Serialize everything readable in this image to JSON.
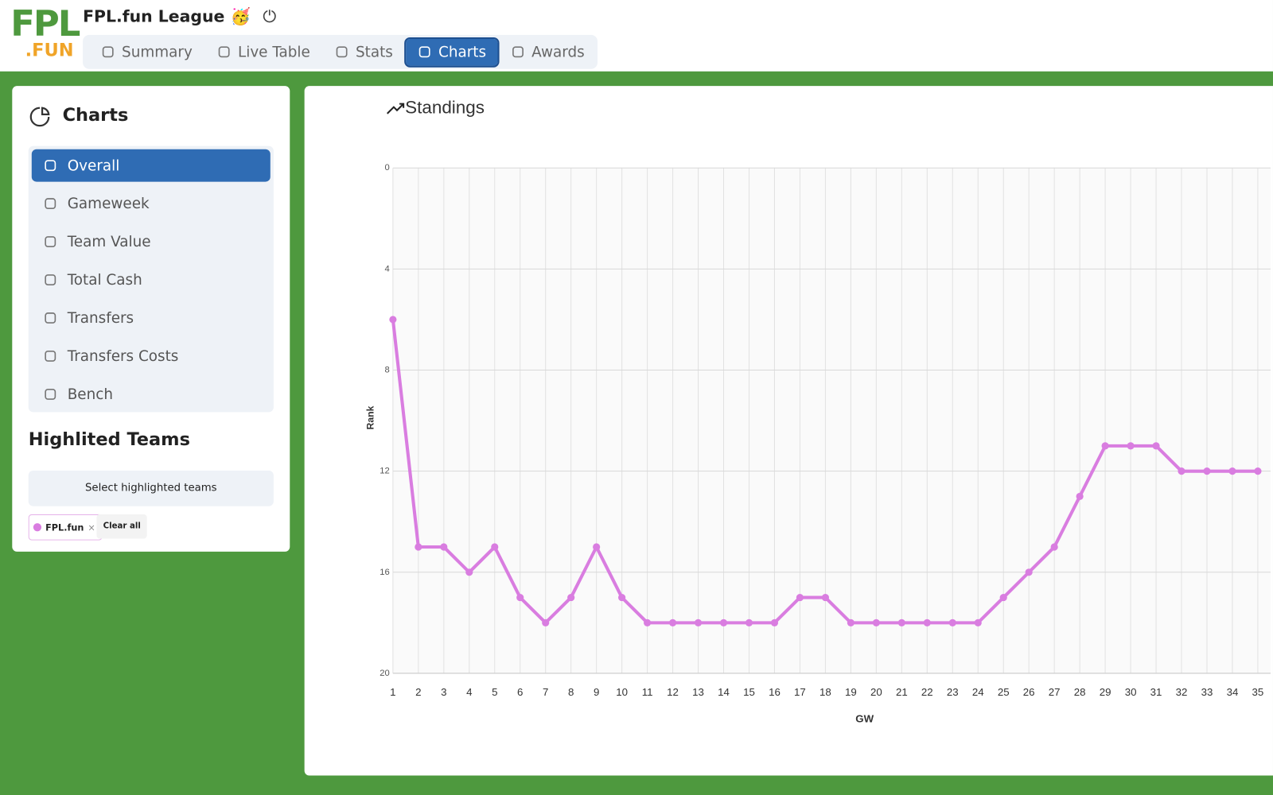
{
  "header": {
    "logo_top": "FPL",
    "logo_bottom": ".FUN",
    "league": "FPL.fun League",
    "emoji": "🥳",
    "tabs": [
      "Summary",
      "Live Table",
      "Stats",
      "Charts",
      "Awards"
    ],
    "active_tab": "Charts"
  },
  "sidebar": {
    "title": "Charts",
    "menu": [
      "Overall",
      "Gameweek",
      "Team Value",
      "Total Cash",
      "Transfers",
      "Transfers Costs",
      "Bench"
    ],
    "active_menu": "Overall",
    "highlight_title": "Highlited Teams",
    "select_button": "Select highlighted teams",
    "clear_button": "Clear all"
  },
  "chart_data": {
    "type": "line",
    "title": "Standings",
    "x_label": "GW",
    "y_label": "Rank",
    "x": [
      1,
      2,
      3,
      4,
      5,
      6,
      7,
      8,
      9,
      10,
      11,
      12,
      13,
      14,
      15,
      16,
      17,
      18,
      19,
      20,
      21,
      22,
      23,
      24,
      25,
      26,
      27,
      28,
      29,
      30,
      31,
      32,
      33,
      34,
      35
    ],
    "series": [
      {
        "name": "FPL.fun",
        "color": "#d97de0",
        "values": [
          6,
          15,
          15,
          16,
          15,
          17,
          18,
          17,
          15,
          17,
          18,
          18,
          18,
          18,
          18,
          18,
          17,
          17,
          18,
          18,
          18,
          18,
          18,
          18,
          17,
          16,
          15,
          13,
          11,
          11,
          11,
          12,
          12,
          12,
          12
        ]
      }
    ],
    "xlim": [
      1,
      35.5
    ],
    "xticks": [
      1,
      2,
      3,
      4,
      5,
      6,
      7,
      8,
      9,
      10,
      11,
      12,
      13,
      14,
      15,
      16,
      17,
      18,
      19,
      20,
      21,
      22,
      23,
      24,
      25,
      26,
      27,
      28,
      29,
      30,
      31,
      32,
      33,
      34,
      35
    ],
    "ylim": [
      0,
      20
    ],
    "yticks": [
      0,
      4,
      8,
      12,
      16,
      20
    ],
    "y_inverted": true,
    "grid": true
  }
}
